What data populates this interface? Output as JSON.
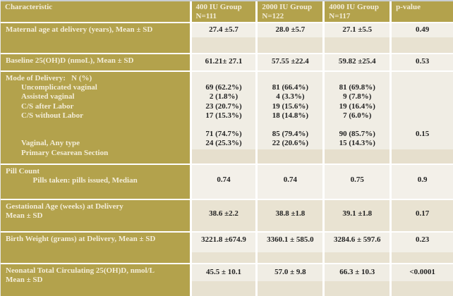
{
  "theme": {
    "header_bg": "#b3a24c",
    "header_text": "#f3edd9",
    "cell_bg_light": "#f2efe7",
    "cell_bg_tan": "#e8e2d1",
    "grid_line": "#ffffff",
    "value_text": "#222222"
  },
  "table": {
    "header": {
      "characteristic": "Characteristic",
      "group_400": "400 IU Group\nN=111",
      "group_2000": "2000 IU Group\nN=122",
      "group_4000": "4000 IU Group\nN=117",
      "p_value": "p-value"
    },
    "rows": [
      {
        "label": "Maternal age at delivery (years), Mean ± SD",
        "v400": "27.4 ±5.7",
        "v2000": "28.0 ±5.7",
        "v4000": "27.1 ±5.5",
        "p": "0.49"
      },
      {
        "label": "Baseline 25(OH)D (nmoL), Mean ± SD",
        "v400": "61.21± 27.1",
        "v2000": "57.55 ±22.4",
        "v4000": "59.82 ±25.4",
        "p": "0.53"
      },
      {
        "label": "Mode of Delivery:   N (%)\n        Uncomplicated vaginal\n        Assisted vaginal\n        C/S after Labor\n        C/S without Labor\n\n\n        Vaginal, Any type\n        Primary Cesarean Section",
        "v400": "\n69 (62.2%)\n2 (1.8%)\n23 (20.7%)\n17 (15.3%)\n\n71 (74.7%)\n24 (25.3%)",
        "v2000": "\n81 (66.4%)\n4 (3.3%)\n19 (15.6%)\n18 (14.8%)\n\n85 (79.4%)\n22 (20.6%)",
        "v4000": "\n81 (69.8%)\n9 (7.8%)\n19 (16.4%)\n7 (6.0%)\n\n90 (85.7%)\n15 (14.3%)",
        "p": "\n\n\n\n\n\n0.15"
      },
      {
        "label": "Pill Count\n              Pills taken: pills issued, Median",
        "v400": "0.74",
        "v2000": "0.74",
        "v4000": "0.75",
        "p": "0.9"
      },
      {
        "label": "Gestational Age (weeks) at Delivery\nMean ± SD",
        "v400": "38.6 ±2.2",
        "v2000": "38.8 ±1.8",
        "v4000": "39.1 ±1.8",
        "p": "0.17"
      },
      {
        "label": "Birth Weight (grams) at Delivery, Mean ± SD",
        "v400": "3221.8 ±674.9",
        "v2000": "3360.1 ± 585.0",
        "v4000": "3284.6 ± 597.6",
        "p": "0.23"
      },
      {
        "label": "Neonatal Total Circulating 25(OH)D, nmol/L\nMean ± SD",
        "v400": "45.5 ± 10.1",
        "v2000": "57.0 ± 9.8",
        "v4000": "66.3 ± 10.3",
        "p": "<0.0001"
      }
    ]
  }
}
